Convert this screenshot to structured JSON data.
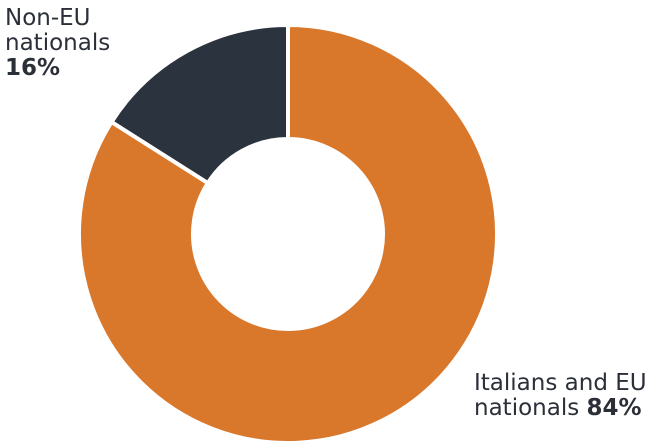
{
  "chart_data": {
    "type": "donut",
    "categories": [
      "Italians and EU nationals",
      "Non-EU nationals"
    ],
    "values": [
      84,
      16
    ],
    "colors": [
      "#d9772b",
      "#2b333f"
    ],
    "slices": [
      {
        "label_lines": [
          "Italians and EU",
          "nationals"
        ],
        "value_text": "84%",
        "value": 84,
        "color": "#d9772b"
      },
      {
        "label_lines": [
          "Non-EU",
          "nationals"
        ],
        "value_text": "16%",
        "value": 16,
        "color": "#2b333f"
      }
    ]
  }
}
